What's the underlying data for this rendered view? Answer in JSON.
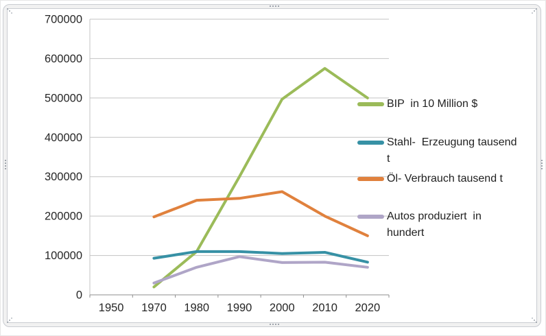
{
  "window": {
    "background": "#FFFFFF",
    "selection_frame_color": "#C9CCD1"
  },
  "chart_data": {
    "type": "line",
    "title": "",
    "categories": [
      "1950",
      "1970",
      "1980",
      "1990",
      "2000",
      "2010",
      "2020"
    ],
    "x_axis": {
      "tick_labels": [
        "1950",
        "1970",
        "1980",
        "1990",
        "2000",
        "2010",
        "2020"
      ]
    },
    "y_axis": {
      "min": 0,
      "max": 700000,
      "step": 100000,
      "tick_labels": [
        "0",
        "100000",
        "200000",
        "300000",
        "400000",
        "500000",
        "600000",
        "700000"
      ]
    },
    "grid": true,
    "legend_position": "right",
    "series": [
      {
        "name": "BIP  in 10 Million $",
        "legend_lines": [
          "BIP  in 10 Million $"
        ],
        "color": "#9BBB59",
        "values": [
          null,
          20000,
          110000,
          300000,
          497000,
          575000,
          500000
        ]
      },
      {
        "name": "Stahl-  Erzeugung tausend t",
        "legend_lines": [
          "Stahl-  Erzeugung tausend",
          "t"
        ],
        "color": "#3791A5",
        "values": [
          null,
          93000,
          110000,
          110000,
          105000,
          108000,
          83000
        ]
      },
      {
        "name": "Öl- Verbrauch tausend t",
        "legend_lines": [
          "Öl- Verbrauch tausend t"
        ],
        "color": "#E0813D",
        "values": [
          null,
          198000,
          240000,
          245000,
          262000,
          200000,
          150000
        ]
      },
      {
        "name": "Autos produziert  in hundert",
        "legend_lines": [
          "Autos produziert  in",
          "hundert"
        ],
        "color": "#AFA5C7",
        "values": [
          null,
          30000,
          70000,
          97000,
          82000,
          83000,
          70000
        ]
      }
    ],
    "axis_text_color": "#262626",
    "gridline_color": "#C3C3C3",
    "axis_line_color": "#8E8E8E"
  }
}
